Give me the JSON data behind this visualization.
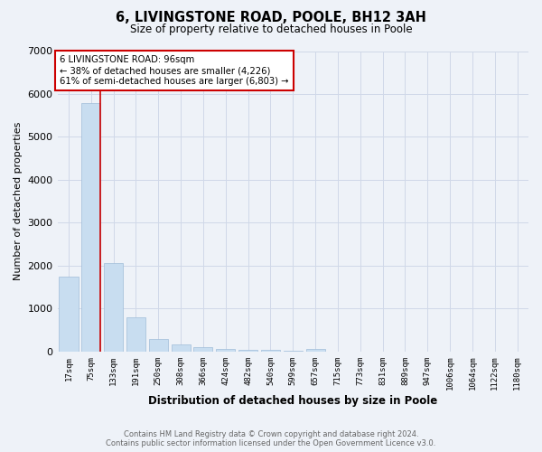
{
  "title_line1": "6, LIVINGSTONE ROAD, POOLE, BH12 3AH",
  "title_line2": "Size of property relative to detached houses in Poole",
  "xlabel": "Distribution of detached houses by size in Poole",
  "ylabel": "Number of detached properties",
  "categories": [
    "17sqm",
    "75sqm",
    "133sqm",
    "191sqm",
    "250sqm",
    "308sqm",
    "366sqm",
    "424sqm",
    "482sqm",
    "540sqm",
    "599sqm",
    "657sqm",
    "715sqm",
    "773sqm",
    "831sqm",
    "889sqm",
    "947sqm",
    "1006sqm",
    "1064sqm",
    "1122sqm",
    "1180sqm"
  ],
  "values": [
    1750,
    5780,
    2060,
    800,
    300,
    175,
    95,
    65,
    45,
    35,
    30,
    70,
    0,
    0,
    0,
    0,
    0,
    0,
    0,
    0,
    0
  ],
  "bar_color": "#c8ddf0",
  "bar_edge_color": "#a0bcd8",
  "grid_color": "#d0d8e8",
  "background_color": "#eef2f8",
  "red_line_color": "#cc0000",
  "annotation_title": "6 LIVINGSTONE ROAD: 96sqm",
  "annotation_line1": "← 38% of detached houses are smaller (4,226)",
  "annotation_line2": "61% of semi-detached houses are larger (6,803) →",
  "annotation_box_color": "#ffffff",
  "annotation_border_color": "#cc0000",
  "footer_line1": "Contains HM Land Registry data © Crown copyright and database right 2024.",
  "footer_line2": "Contains public sector information licensed under the Open Government Licence v3.0.",
  "ylim": [
    0,
    7000
  ],
  "yticks": [
    0,
    1000,
    2000,
    3000,
    4000,
    5000,
    6000,
    7000
  ],
  "red_line_x": 1.42
}
